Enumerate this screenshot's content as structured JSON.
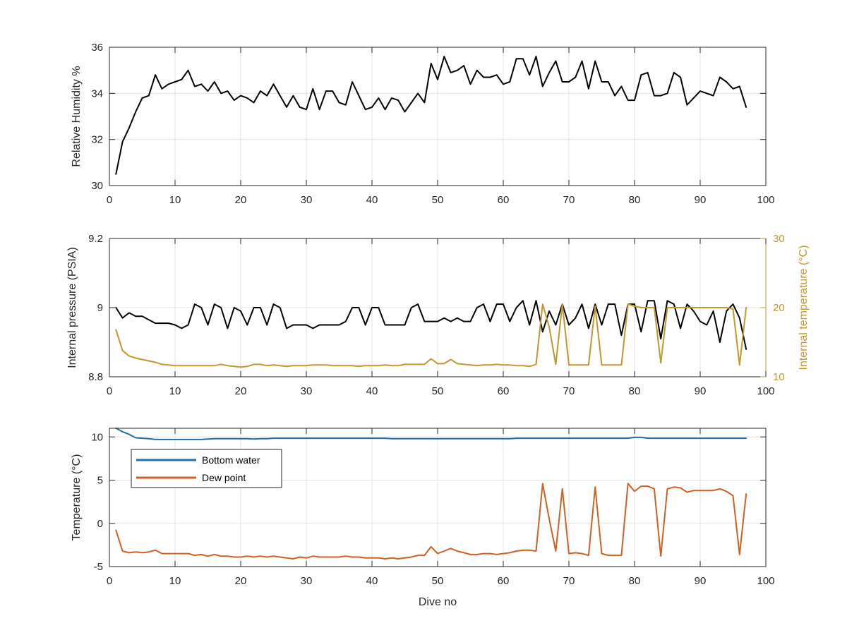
{
  "chart_data": [
    {
      "id": "humidity",
      "type": "line",
      "ylabel": "Relative Humidity %",
      "xlabel": "",
      "xlim": [
        0,
        100
      ],
      "ylim": [
        30,
        36
      ],
      "xticks": [
        "0",
        "10",
        "20",
        "30",
        "40",
        "50",
        "60",
        "70",
        "80",
        "90",
        "100"
      ],
      "yticks": [
        "30",
        "32",
        "34",
        "36"
      ],
      "grid": true,
      "series": [
        {
          "color": "#000000",
          "x": [
            1,
            2,
            3,
            4,
            5,
            6,
            7,
            8,
            9,
            10,
            11,
            12,
            13,
            14,
            15,
            16,
            17,
            18,
            19,
            20,
            21,
            22,
            23,
            24,
            25,
            26,
            27,
            28,
            29,
            30,
            31,
            32,
            33,
            34,
            35,
            36,
            37,
            38,
            39,
            40,
            41,
            42,
            43,
            44,
            45,
            46,
            47,
            48,
            49,
            50,
            51,
            52,
            53,
            54,
            55,
            56,
            57,
            58,
            59,
            60,
            61,
            62,
            63,
            64,
            65,
            66,
            67,
            68,
            69,
            70,
            71,
            72,
            73,
            74,
            75,
            76,
            77,
            78,
            79,
            80,
            81,
            82,
            83,
            84,
            85,
            86,
            87,
            88,
            89,
            90,
            91,
            92,
            93,
            94,
            95,
            96,
            97
          ],
          "y": [
            30.5,
            31.9,
            32.5,
            33.2,
            33.8,
            33.9,
            34.8,
            34.2,
            34.4,
            34.5,
            34.6,
            35.0,
            34.3,
            34.4,
            34.1,
            34.5,
            34.0,
            34.1,
            33.7,
            33.9,
            33.8,
            33.6,
            34.1,
            33.9,
            34.4,
            33.9,
            33.4,
            33.9,
            33.4,
            33.3,
            34.2,
            33.3,
            34.1,
            34.1,
            33.6,
            33.5,
            34.5,
            33.9,
            33.3,
            33.4,
            33.8,
            33.3,
            33.8,
            33.7,
            33.2,
            33.6,
            34.0,
            33.6,
            35.3,
            34.6,
            35.6,
            34.9,
            35.0,
            35.2,
            34.4,
            35.0,
            34.7,
            34.7,
            34.8,
            34.4,
            34.5,
            35.5,
            35.5,
            34.8,
            35.6,
            34.3,
            34.9,
            35.4,
            34.5,
            34.5,
            34.7,
            35.4,
            34.2,
            35.4,
            34.5,
            34.5,
            33.9,
            34.3,
            33.7,
            33.7,
            34.8,
            34.9,
            33.9,
            33.9,
            34.0,
            34.9,
            34.7,
            33.5,
            33.8,
            34.1,
            34.0,
            33.9,
            34.7,
            34.5,
            34.2,
            34.3,
            33.4
          ]
        }
      ]
    },
    {
      "id": "pressure",
      "type": "line",
      "ylabel": "Internal pressure (PSIA)",
      "ylabel_right": "Internal temperature (°C)",
      "xlabel": "",
      "xlim": [
        0,
        100
      ],
      "ylim": [
        8.8,
        9.2
      ],
      "ylim_right": [
        10,
        30
      ],
      "xticks": [
        "0",
        "10",
        "20",
        "30",
        "40",
        "50",
        "60",
        "70",
        "80",
        "90",
        "100"
      ],
      "yticks": [
        "8.8",
        "9",
        "9.2"
      ],
      "yticks_right": [
        "10",
        "20",
        "30"
      ],
      "grid": true,
      "series": [
        {
          "axis": "left",
          "color": "#000000",
          "x": [
            1,
            2,
            3,
            4,
            5,
            6,
            7,
            8,
            9,
            10,
            11,
            12,
            13,
            14,
            15,
            16,
            17,
            18,
            19,
            20,
            21,
            22,
            23,
            24,
            25,
            26,
            27,
            28,
            29,
            30,
            31,
            32,
            33,
            34,
            35,
            36,
            37,
            38,
            39,
            40,
            41,
            42,
            43,
            44,
            45,
            46,
            47,
            48,
            49,
            50,
            51,
            52,
            53,
            54,
            55,
            56,
            57,
            58,
            59,
            60,
            61,
            62,
            63,
            64,
            65,
            66,
            67,
            68,
            69,
            70,
            71,
            72,
            73,
            74,
            75,
            76,
            77,
            78,
            79,
            80,
            81,
            82,
            83,
            84,
            85,
            86,
            87,
            88,
            89,
            90,
            91,
            92,
            93,
            94,
            95,
            96,
            97
          ],
          "y": [
            9.0,
            8.97,
            8.985,
            8.975,
            8.975,
            8.965,
            8.955,
            8.955,
            8.955,
            8.95,
            8.94,
            8.95,
            9.01,
            9.0,
            8.95,
            9.01,
            9.0,
            8.94,
            9.0,
            8.99,
            8.95,
            9.0,
            9.0,
            8.95,
            9.01,
            9.0,
            8.94,
            8.95,
            8.95,
            8.95,
            8.94,
            8.95,
            8.95,
            8.95,
            8.95,
            8.96,
            9.0,
            9.0,
            8.95,
            9.0,
            9.0,
            8.95,
            8.95,
            8.95,
            8.95,
            9.0,
            9.01,
            8.96,
            8.96,
            8.96,
            8.97,
            8.96,
            8.97,
            8.96,
            8.96,
            9.0,
            9.01,
            8.96,
            9.01,
            9.01,
            8.96,
            9.0,
            9.02,
            8.95,
            9.02,
            8.93,
            8.99,
            8.95,
            9.01,
            8.95,
            8.97,
            9.01,
            8.94,
            9.01,
            8.95,
            9.01,
            9.01,
            8.92,
            9.01,
            9.01,
            8.93,
            9.02,
            9.02,
            8.91,
            9.02,
            9.01,
            8.94,
            9.01,
            8.99,
            8.96,
            8.95,
            8.99,
            8.9,
            8.99,
            9.01,
            8.97,
            8.88
          ]
        },
        {
          "axis": "right",
          "color": "#C3972A",
          "x": [
            1,
            2,
            3,
            4,
            5,
            6,
            7,
            8,
            9,
            10,
            11,
            12,
            13,
            14,
            15,
            16,
            17,
            18,
            19,
            20,
            21,
            22,
            23,
            24,
            25,
            26,
            27,
            28,
            29,
            30,
            31,
            32,
            33,
            34,
            35,
            36,
            37,
            38,
            39,
            40,
            41,
            42,
            43,
            44,
            45,
            46,
            47,
            48,
            49,
            50,
            51,
            52,
            53,
            54,
            55,
            56,
            57,
            58,
            59,
            60,
            61,
            62,
            63,
            64,
            65,
            66,
            67,
            68,
            69,
            70,
            71,
            72,
            73,
            74,
            75,
            76,
            77,
            78,
            79,
            80,
            81,
            82,
            83,
            84,
            85,
            86,
            87,
            88,
            89,
            90,
            91,
            92,
            93,
            94,
            95,
            96,
            97
          ],
          "y": [
            16.8,
            13.8,
            13.0,
            12.7,
            12.5,
            12.3,
            12.1,
            11.8,
            11.7,
            11.6,
            11.6,
            11.6,
            11.6,
            11.6,
            11.6,
            11.6,
            11.8,
            11.6,
            11.5,
            11.4,
            11.5,
            11.8,
            11.8,
            11.6,
            11.7,
            11.6,
            11.5,
            11.6,
            11.6,
            11.6,
            11.7,
            11.7,
            11.7,
            11.6,
            11.6,
            11.6,
            11.6,
            11.5,
            11.6,
            11.6,
            11.6,
            11.7,
            11.6,
            11.6,
            11.8,
            11.8,
            11.8,
            11.8,
            12.6,
            11.9,
            11.9,
            12.5,
            11.9,
            11.8,
            11.7,
            11.6,
            11.7,
            11.7,
            11.8,
            11.7,
            11.7,
            11.6,
            11.6,
            11.5,
            11.8,
            20.5,
            17.2,
            11.8,
            20.5,
            11.7,
            11.7,
            11.7,
            11.7,
            20.2,
            11.7,
            11.7,
            11.7,
            11.7,
            20.5,
            20.2,
            20.0,
            20.0,
            20.0,
            12.0,
            20.0,
            20.0,
            20.0,
            20.0,
            20.0,
            20.0,
            20.0,
            20.0,
            20.0,
            20.0,
            19.8,
            11.7,
            20.0
          ]
        }
      ]
    },
    {
      "id": "temperature",
      "type": "line",
      "ylabel": "Temperature (°C)",
      "xlabel": "Dive no",
      "xlim": [
        0,
        100
      ],
      "ylim": [
        -5,
        11
      ],
      "xticks": [
        "0",
        "10",
        "20",
        "30",
        "40",
        "50",
        "60",
        "70",
        "80",
        "90",
        "100"
      ],
      "yticks": [
        "-5",
        "0",
        "5",
        "10"
      ],
      "grid": true,
      "legend_position": "upper-left",
      "series": [
        {
          "name": "Bottom water",
          "color": "#1F6EAE",
          "x": [
            1,
            2,
            3,
            4,
            5,
            6,
            7,
            8,
            9,
            10,
            11,
            12,
            13,
            14,
            15,
            16,
            17,
            18,
            19,
            20,
            21,
            22,
            23,
            24,
            25,
            26,
            27,
            28,
            29,
            30,
            31,
            32,
            33,
            34,
            35,
            36,
            37,
            38,
            39,
            40,
            41,
            42,
            43,
            44,
            45,
            46,
            47,
            48,
            49,
            50,
            51,
            52,
            53,
            54,
            55,
            56,
            57,
            58,
            59,
            60,
            61,
            62,
            63,
            64,
            65,
            66,
            67,
            68,
            69,
            70,
            71,
            72,
            73,
            74,
            75,
            76,
            77,
            78,
            79,
            80,
            81,
            82,
            83,
            84,
            85,
            86,
            87,
            88,
            89,
            90,
            91,
            92,
            93,
            94,
            95,
            96,
            97
          ],
          "y": [
            11.0,
            10.6,
            10.3,
            9.9,
            9.85,
            9.8,
            9.7,
            9.7,
            9.7,
            9.7,
            9.7,
            9.7,
            9.7,
            9.7,
            9.75,
            9.8,
            9.8,
            9.8,
            9.8,
            9.8,
            9.8,
            9.75,
            9.8,
            9.8,
            9.85,
            9.85,
            9.85,
            9.85,
            9.85,
            9.85,
            9.85,
            9.85,
            9.85,
            9.85,
            9.85,
            9.85,
            9.85,
            9.85,
            9.85,
            9.85,
            9.85,
            9.85,
            9.8,
            9.8,
            9.8,
            9.8,
            9.8,
            9.8,
            9.8,
            9.8,
            9.8,
            9.8,
            9.8,
            9.8,
            9.8,
            9.8,
            9.8,
            9.8,
            9.8,
            9.8,
            9.8,
            9.85,
            9.85,
            9.85,
            9.85,
            9.85,
            9.85,
            9.85,
            9.85,
            9.85,
            9.85,
            9.85,
            9.85,
            9.85,
            9.85,
            9.85,
            9.85,
            9.85,
            9.85,
            9.95,
            9.95,
            9.85,
            9.85,
            9.85,
            9.85,
            9.85,
            9.85,
            9.85,
            9.85,
            9.85,
            9.85,
            9.85,
            9.85,
            9.85,
            9.85,
            9.85,
            9.85
          ]
        },
        {
          "name": "Dew point",
          "color": "#D35F20",
          "x": [
            1,
            2,
            3,
            4,
            5,
            6,
            7,
            8,
            9,
            10,
            11,
            12,
            13,
            14,
            15,
            16,
            17,
            18,
            19,
            20,
            21,
            22,
            23,
            24,
            25,
            26,
            27,
            28,
            29,
            30,
            31,
            32,
            33,
            34,
            35,
            36,
            37,
            38,
            39,
            40,
            41,
            42,
            43,
            44,
            45,
            46,
            47,
            48,
            49,
            50,
            51,
            52,
            53,
            54,
            55,
            56,
            57,
            58,
            59,
            60,
            61,
            62,
            63,
            64,
            65,
            66,
            67,
            68,
            69,
            70,
            71,
            72,
            73,
            74,
            75,
            76,
            77,
            78,
            79,
            80,
            81,
            82,
            83,
            84,
            85,
            86,
            87,
            88,
            89,
            90,
            91,
            92,
            93,
            94,
            95,
            96,
            97
          ],
          "y": [
            -0.8,
            -3.2,
            -3.4,
            -3.3,
            -3.4,
            -3.3,
            -3.1,
            -3.5,
            -3.5,
            -3.5,
            -3.5,
            -3.5,
            -3.7,
            -3.6,
            -3.8,
            -3.6,
            -3.8,
            -3.8,
            -3.9,
            -3.9,
            -3.8,
            -3.9,
            -3.8,
            -3.9,
            -3.8,
            -3.9,
            -4.0,
            -4.1,
            -3.9,
            -4.0,
            -3.8,
            -3.9,
            -3.9,
            -3.9,
            -3.9,
            -3.8,
            -3.9,
            -3.9,
            -4.0,
            -4.0,
            -4.0,
            -4.1,
            -4.0,
            -4.1,
            -4.0,
            -3.9,
            -3.7,
            -3.7,
            -2.7,
            -3.5,
            -3.2,
            -2.9,
            -3.2,
            -3.4,
            -3.6,
            -3.6,
            -3.5,
            -3.5,
            -3.6,
            -3.5,
            -3.4,
            -3.2,
            -3.1,
            -3.1,
            -3.2,
            4.6,
            0.5,
            -3.2,
            4.0,
            -3.5,
            -3.4,
            -3.5,
            -3.7,
            4.2,
            -3.5,
            -3.7,
            -3.7,
            -3.7,
            4.6,
            3.7,
            4.3,
            4.3,
            4.0,
            -3.8,
            4.0,
            4.2,
            4.1,
            3.6,
            3.8,
            3.8,
            3.8,
            3.8,
            4.0,
            3.7,
            3.2,
            -3.6,
            3.4
          ]
        }
      ]
    }
  ]
}
